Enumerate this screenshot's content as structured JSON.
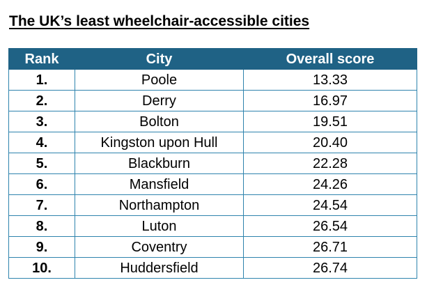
{
  "title": "The UK’s least wheelchair-accessible cities",
  "table": {
    "headers": {
      "rank": "Rank",
      "city": "City",
      "score": "Overall score"
    },
    "rows": [
      {
        "rank": "1.",
        "city": "Poole",
        "score": "13.33"
      },
      {
        "rank": "2.",
        "city": "Derry",
        "score": "16.97"
      },
      {
        "rank": "3.",
        "city": "Bolton",
        "score": "19.51"
      },
      {
        "rank": "4.",
        "city": "Kingston upon Hull",
        "score": "20.40"
      },
      {
        "rank": "5.",
        "city": "Blackburn",
        "score": "22.28"
      },
      {
        "rank": "6.",
        "city": "Mansfield",
        "score": "24.26"
      },
      {
        "rank": "7.",
        "city": "Northampton",
        "score": "24.54"
      },
      {
        "rank": "8.",
        "city": "Luton",
        "score": "26.54"
      },
      {
        "rank": "9.",
        "city": "Coventry",
        "score": "26.71"
      },
      {
        "rank": "10.",
        "city": "Huddersfield",
        "score": "26.74"
      }
    ],
    "colors": {
      "header_background": "#1f6285",
      "header_text": "#ffffff",
      "border": "#2e83ad"
    }
  }
}
